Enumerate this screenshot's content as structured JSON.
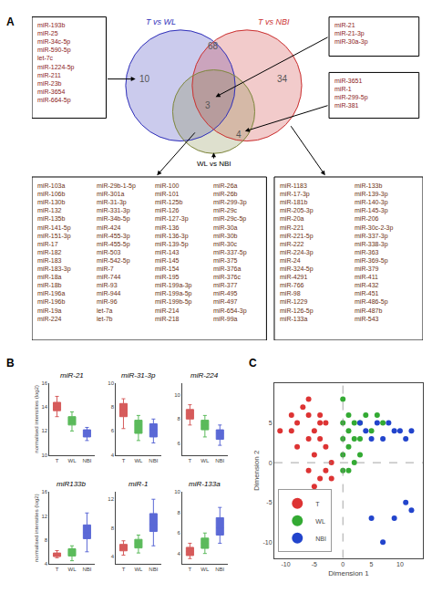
{
  "chart_data": [
    {
      "panel": "A",
      "type": "venn",
      "sets": [
        {
          "name": "T vs WL",
          "color": "#3333bb"
        },
        {
          "name": "T vs NBI",
          "color": "#cc3333"
        },
        {
          "name": "WL vs NBI",
          "color": "#808840"
        }
      ],
      "regions": [
        {
          "value": 10,
          "color": "#8B2020",
          "items": [
            [
              "miR-193b",
              "miR-25",
              "miR-34c-5p",
              "miR-590-5p",
              "let-7c",
              "miR-1224-5p",
              "miR-211",
              "miR-23b",
              "miR-3654",
              "miR-664-5p"
            ]
          ]
        },
        {
          "value": 68,
          "color": "#6B3010",
          "items": [
            [
              "miR-103a",
              "miR-106b",
              "miR-130b",
              "miR-132",
              "miR-135b",
              "miR-141-5p",
              "miR-151-3p",
              "miR-17",
              "miR-182",
              "miR-183",
              "miR-183-3p",
              "miR-18a",
              "miR-18b",
              "miR-196a",
              "miR-196b",
              "miR-19a",
              "miR-224"
            ],
            [
              "miR-29b-1-5p",
              "miR-301a",
              "miR-31-3p",
              "miR-331-3p",
              "miR-34b-5p",
              "miR-424",
              "miR-455-3p",
              "miR-455-5p",
              "miR-503",
              "miR-542-5p",
              "miR-7",
              "miR-744",
              "miR-93",
              "miR-944",
              "miR-96",
              "let-7a",
              "let-7b"
            ],
            [
              "miR-100",
              "miR-101",
              "miR-125b",
              "miR-126",
              "miR-127-3p",
              "miR-136",
              "miR-136-3p",
              "miR-139-5p",
              "miR-143",
              "miR-145",
              "miR-154",
              "miR-195",
              "miR-199a-3p",
              "miR-199a-5p",
              "miR-199b-5p",
              "miR-214",
              "miR-218"
            ],
            [
              "miR-26a",
              "miR-26b",
              "miR-299-3p",
              "miR-29c",
              "miR-29c-5p",
              "miR-30a",
              "miR-30b",
              "miR-30c",
              "miR-337-5p",
              "miR-375",
              "miR-376a",
              "miR-376c",
              "miR-377",
              "miR-495",
              "miR-497",
              "miR-654-3p",
              "miR-99a"
            ]
          ]
        },
        {
          "value": 3,
          "color": "#8B2020",
          "items": [
            [
              "miR-21",
              "miR-21-3p",
              "miR-30a-3p"
            ]
          ]
        },
        {
          "value": 4,
          "color": "#8B2020",
          "items": [
            [
              "miR-3651",
              "miR-1",
              "miR-299-5p",
              "miR-381"
            ]
          ]
        },
        {
          "value": 34,
          "color": "#6B3010",
          "items": [
            [
              "miR-1183",
              "miR-17-3p",
              "miR-181b",
              "miR-205-3p",
              "miR-20a",
              "miR-221",
              "miR-221-5p",
              "miR-222",
              "miR-224-3p",
              "miR-24",
              "miR-324-5p",
              "miR-4291",
              "miR-766",
              "miR-98",
              "miR-1229",
              "miR-126-5p",
              "miR-133a"
            ],
            [
              "miR-133b",
              "miR-139-3p",
              "miR-140-3p",
              "miR-145-3p",
              "miR-206",
              "miR-30c-2-3p",
              "miR-337-3p",
              "miR-338-3p",
              "miR-363",
              "miR-369-5p",
              "miR-379",
              "miR-411",
              "miR-432",
              "miR-451",
              "miR-486-5p",
              "miR-487b",
              "miR-543"
            ]
          ]
        }
      ]
    },
    {
      "panel": "B",
      "type": "box",
      "ylabel": "normalised intensities (log2)",
      "grid": false,
      "categories": [
        "T",
        "WL",
        "NBI"
      ],
      "colors": [
        "#cc3333",
        "#33aa33",
        "#3344cc"
      ],
      "subplots": [
        {
          "title": "miR-21",
          "ylim": [
            10,
            16
          ],
          "yticks": [
            10,
            12,
            14,
            16
          ],
          "stats": [
            {
              "whislo": 13.2,
              "q1": 13.7,
              "med": 14.0,
              "q3": 14.4,
              "whishi": 14.9
            },
            {
              "whislo": 12.0,
              "q1": 12.5,
              "med": 12.9,
              "q3": 13.2,
              "whishi": 13.6
            },
            {
              "whislo": 11.2,
              "q1": 11.5,
              "med": 11.8,
              "q3": 12.1,
              "whishi": 12.3
            }
          ]
        },
        {
          "title": "miR-31-3p",
          "ylim": [
            4,
            10
          ],
          "yticks": [
            4,
            6,
            8,
            10
          ],
          "stats": [
            {
              "whislo": 6.2,
              "q1": 7.2,
              "med": 7.8,
              "q3": 8.3,
              "whishi": 8.7
            },
            {
              "whislo": 5.2,
              "q1": 5.8,
              "med": 6.5,
              "q3": 6.9,
              "whishi": 7.3
            },
            {
              "whislo": 5.0,
              "q1": 5.5,
              "med": 6.1,
              "q3": 6.6,
              "whishi": 7.0
            }
          ]
        },
        {
          "title": "miR-224",
          "ylim": [
            5,
            11
          ],
          "yticks": [
            6,
            8,
            10
          ],
          "stats": [
            {
              "whislo": 7.5,
              "q1": 8.0,
              "med": 8.4,
              "q3": 8.8,
              "whishi": 9.2
            },
            {
              "whislo": 6.5,
              "q1": 7.1,
              "med": 7.5,
              "q3": 7.9,
              "whishi": 8.3
            },
            {
              "whislo": 5.8,
              "q1": 6.3,
              "med": 6.8,
              "q3": 7.1,
              "whishi": 7.5
            }
          ]
        },
        {
          "title": "miR133b",
          "ylim": [
            4,
            16
          ],
          "yticks": [
            4,
            8,
            12,
            16
          ],
          "stats": [
            {
              "whislo": 5.0,
              "q1": 5.2,
              "med": 5.5,
              "q3": 5.8,
              "whishi": 6.2
            },
            {
              "whislo": 4.5,
              "q1": 5.3,
              "med": 5.8,
              "q3": 6.5,
              "whishi": 7.0
            },
            {
              "whislo": 6.0,
              "q1": 8.2,
              "med": 9.2,
              "q3": 10.5,
              "whishi": 12.5
            }
          ]
        },
        {
          "title": "miR-1",
          "ylim": [
            3,
            13
          ],
          "yticks": [
            4,
            8,
            12
          ],
          "stats": [
            {
              "whislo": 4.2,
              "q1": 4.8,
              "med": 5.2,
              "q3": 5.7,
              "whishi": 6.2
            },
            {
              "whislo": 4.5,
              "q1": 5.2,
              "med": 5.8,
              "q3": 6.4,
              "whishi": 7.0
            },
            {
              "whislo": 5.5,
              "q1": 7.5,
              "med": 8.5,
              "q3": 10.0,
              "whishi": 12.0
            }
          ]
        },
        {
          "title": "miR-133a",
          "ylim": [
            3,
            10
          ],
          "yticks": [
            4,
            6,
            8,
            10
          ],
          "stats": [
            {
              "whislo": 3.5,
              "q1": 3.8,
              "med": 4.2,
              "q3": 4.6,
              "whishi": 5.0
            },
            {
              "whislo": 4.0,
              "q1": 4.5,
              "med": 5.0,
              "q3": 5.5,
              "whishi": 6.0
            },
            {
              "whislo": 5.0,
              "q1": 5.8,
              "med": 6.5,
              "q3": 7.5,
              "whishi": 8.5
            }
          ]
        }
      ]
    },
    {
      "panel": "C",
      "type": "scatter",
      "xlabel": "Dimension 1",
      "ylabel": "Dimension 2",
      "xlim": [
        -12,
        14
      ],
      "ylim": [
        -12,
        10
      ],
      "xticks": [
        -10,
        -5,
        0,
        5,
        10
      ],
      "yticks": [
        -10,
        -5,
        0,
        5
      ],
      "grid": false,
      "legend": "lower left",
      "reference_lines": {
        "x": 0,
        "y": 0
      },
      "series": [
        {
          "name": "T",
          "color": "#dd3333",
          "points": [
            [
              -11,
              4
            ],
            [
              -9,
              6
            ],
            [
              -9,
              4
            ],
            [
              -8,
              5
            ],
            [
              -8,
              2
            ],
            [
              -7,
              7
            ],
            [
              -6,
              8
            ],
            [
              -6,
              6
            ],
            [
              -6,
              3
            ],
            [
              -6,
              -1
            ],
            [
              -5,
              4
            ],
            [
              -5,
              1
            ],
            [
              -5,
              -3
            ],
            [
              -4,
              6
            ],
            [
              -4,
              5
            ],
            [
              -4,
              3
            ],
            [
              -4,
              -2
            ],
            [
              -3,
              5
            ],
            [
              -3,
              2
            ],
            [
              -3,
              -1
            ],
            [
              -3,
              -4
            ],
            [
              -2,
              0
            ],
            [
              -2,
              -2
            ]
          ]
        },
        {
          "name": "WL",
          "color": "#33aa33",
          "points": [
            [
              0,
              8
            ],
            [
              0,
              5
            ],
            [
              0,
              3
            ],
            [
              0,
              1
            ],
            [
              0,
              -1
            ],
            [
              1,
              6
            ],
            [
              1,
              4
            ],
            [
              1,
              2
            ],
            [
              1,
              -1
            ],
            [
              2,
              5
            ],
            [
              2,
              3
            ],
            [
              2,
              0
            ],
            [
              3,
              5
            ],
            [
              3,
              3
            ],
            [
              3,
              1
            ],
            [
              4,
              6
            ],
            [
              5,
              4
            ],
            [
              6,
              6
            ],
            [
              7,
              5
            ]
          ]
        },
        {
          "name": "NBI",
          "color": "#2244cc",
          "points": [
            [
              3,
              5
            ],
            [
              4,
              4
            ],
            [
              5,
              3
            ],
            [
              6,
              5
            ],
            [
              7,
              3
            ],
            [
              8,
              5
            ],
            [
              9,
              4
            ],
            [
              10,
              4
            ],
            [
              11,
              3
            ],
            [
              12,
              4
            ],
            [
              5,
              -7
            ],
            [
              7,
              -10
            ],
            [
              9,
              -7
            ],
            [
              11,
              -5
            ],
            [
              12,
              -6
            ]
          ]
        }
      ]
    }
  ]
}
